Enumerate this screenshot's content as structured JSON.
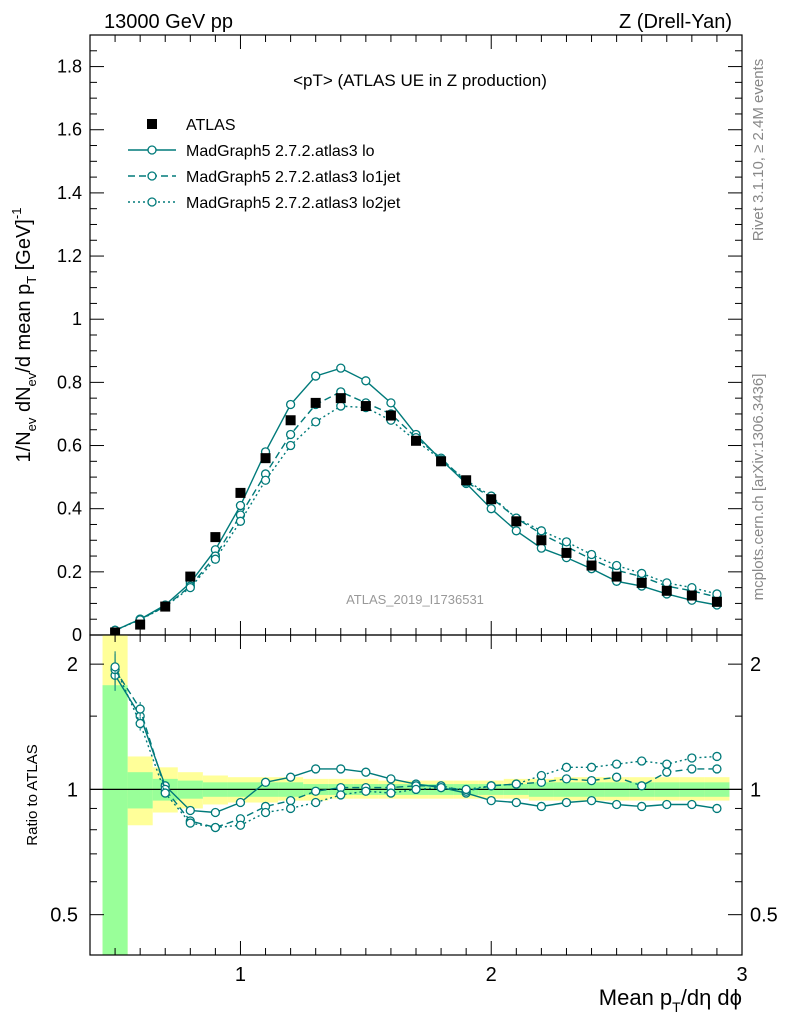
{
  "header": {
    "left": "13000 GeV pp",
    "right": "Z (Drell-Yan)"
  },
  "side_text": {
    "top": "Rivet 3.1.10, ≥ 2.4M events",
    "bottom": "mcplots.cern.ch [arXiv:1306.3436]"
  },
  "colors": {
    "mc": "#007a7a",
    "band_yellow": "#ffff99",
    "band_green": "#99ff99"
  },
  "chart_data": [
    {
      "type": "line",
      "title": "<pT> (ATLAS UE in Z production)",
      "watermark": "ATLAS_2019_I1736531",
      "ylabel": {
        "main": "1/N",
        "s1": "ev",
        "m2": " dN",
        "s2": "ev",
        "m3": "/d mean p",
        "s3": "T",
        "m4": " [GeV]",
        "sup": "-1"
      },
      "xlim": [
        0.4,
        3.0
      ],
      "ylim": [
        0,
        1.9
      ],
      "yticks": [
        0,
        0.2,
        0.4,
        0.6,
        0.8,
        1,
        1.2,
        1.4,
        1.6,
        1.8
      ],
      "ytick_labels": [
        "0",
        "0.2",
        "0.4",
        "0.6",
        "0.8",
        "1",
        "1.2",
        "1.4",
        "1.6",
        "1.8"
      ],
      "x": [
        0.5,
        0.6,
        0.7,
        0.8,
        0.9,
        1.0,
        1.1,
        1.2,
        1.3,
        1.4,
        1.5,
        1.6,
        1.7,
        1.8,
        1.9,
        2.0,
        2.1,
        2.2,
        2.3,
        2.4,
        2.5,
        2.6,
        2.7,
        2.8,
        2.9
      ],
      "series": [
        {
          "name": "ATLAS",
          "style": "marker",
          "values": [
            0.008,
            0.033,
            0.09,
            0.185,
            0.31,
            0.45,
            0.56,
            0.68,
            0.735,
            0.75,
            0.725,
            0.695,
            0.615,
            0.55,
            0.49,
            0.43,
            0.36,
            0.3,
            0.26,
            0.22,
            0.185,
            0.165,
            0.14,
            0.125,
            0.105
          ]
        },
        {
          "name": "MadGraph5 2.7.2.atlas3 lo",
          "style": "solid",
          "values": [
            0.015,
            0.05,
            0.095,
            0.165,
            0.27,
            0.41,
            0.58,
            0.73,
            0.82,
            0.845,
            0.805,
            0.735,
            0.635,
            0.555,
            0.48,
            0.4,
            0.33,
            0.275,
            0.245,
            0.21,
            0.17,
            0.155,
            0.13,
            0.11,
            0.095
          ]
        },
        {
          "name": "MadGraph5 2.7.2.atlas3 lo1jet",
          "style": "dashed",
          "values": [
            0.015,
            0.05,
            0.09,
            0.155,
            0.25,
            0.38,
            0.51,
            0.635,
            0.73,
            0.77,
            0.735,
            0.7,
            0.625,
            0.56,
            0.485,
            0.435,
            0.37,
            0.32,
            0.28,
            0.24,
            0.205,
            0.185,
            0.155,
            0.14,
            0.12
          ]
        },
        {
          "name": "MadGraph5 2.7.2.atlas3 lo2jet",
          "style": "dotted",
          "values": [
            0.015,
            0.048,
            0.09,
            0.15,
            0.24,
            0.36,
            0.49,
            0.6,
            0.675,
            0.725,
            0.72,
            0.68,
            0.615,
            0.555,
            0.49,
            0.44,
            0.37,
            0.33,
            0.295,
            0.255,
            0.22,
            0.195,
            0.165,
            0.15,
            0.13
          ]
        }
      ]
    },
    {
      "type": "line",
      "title": "",
      "ylabel": "Ratio to ATLAS",
      "xlabel": {
        "a": "Mean p",
        "sub": "T",
        "b": "/dη dϕ"
      },
      "ylim": [
        0.4,
        2.35
      ],
      "log_y": true,
      "yticks": [
        0.5,
        1,
        2
      ],
      "ytick_labels": [
        "0.5",
        "1",
        "2"
      ],
      "xticks": [
        1,
        2,
        3
      ],
      "xtick_labels": [
        "1",
        "2",
        "3"
      ],
      "x": [
        0.5,
        0.6,
        0.7,
        0.8,
        0.9,
        1.0,
        1.1,
        1.2,
        1.3,
        1.4,
        1.5,
        1.6,
        1.7,
        1.8,
        1.9,
        2.0,
        2.1,
        2.2,
        2.3,
        2.4,
        2.5,
        2.6,
        2.7,
        2.8,
        2.9
      ],
      "bands": {
        "edges": [
          0.45,
          0.55,
          0.65,
          0.75,
          0.85,
          0.95,
          1.05,
          1.15,
          1.25,
          1.35,
          1.45,
          1.55,
          1.65,
          1.75,
          1.85,
          1.95,
          2.05,
          2.15,
          2.25,
          2.35,
          2.45,
          2.55,
          2.65,
          2.75,
          2.85,
          2.95
        ],
        "yellow": [
          [
            0.4,
            2.35
          ],
          [
            0.82,
            1.2
          ],
          [
            0.88,
            1.13
          ],
          [
            0.9,
            1.1
          ],
          [
            0.92,
            1.08
          ],
          [
            0.93,
            1.07
          ],
          [
            0.93,
            1.07
          ],
          [
            0.94,
            1.07
          ],
          [
            0.94,
            1.06
          ],
          [
            0.95,
            1.06
          ],
          [
            0.95,
            1.06
          ],
          [
            0.95,
            1.05
          ],
          [
            0.95,
            1.05
          ],
          [
            0.95,
            1.05
          ],
          [
            0.95,
            1.05
          ],
          [
            0.95,
            1.05
          ],
          [
            0.95,
            1.06
          ],
          [
            0.94,
            1.06
          ],
          [
            0.94,
            1.07
          ],
          [
            0.94,
            1.07
          ],
          [
            0.94,
            1.07
          ],
          [
            0.94,
            1.07
          ],
          [
            0.94,
            1.07
          ],
          [
            0.94,
            1.07
          ],
          [
            0.94,
            1.07
          ]
        ],
        "green": [
          [
            0.4,
            1.78
          ],
          [
            0.9,
            1.1
          ],
          [
            0.94,
            1.06
          ],
          [
            0.95,
            1.05
          ],
          [
            0.96,
            1.04
          ],
          [
            0.96,
            1.04
          ],
          [
            0.96,
            1.04
          ],
          [
            0.96,
            1.04
          ],
          [
            0.97,
            1.03
          ],
          [
            0.97,
            1.03
          ],
          [
            0.97,
            1.03
          ],
          [
            0.97,
            1.03
          ],
          [
            0.97,
            1.03
          ],
          [
            0.97,
            1.03
          ],
          [
            0.97,
            1.03
          ],
          [
            0.97,
            1.03
          ],
          [
            0.97,
            1.03
          ],
          [
            0.96,
            1.04
          ],
          [
            0.96,
            1.04
          ],
          [
            0.96,
            1.04
          ],
          [
            0.96,
            1.04
          ],
          [
            0.96,
            1.04
          ],
          [
            0.96,
            1.04
          ],
          [
            0.96,
            1.04
          ],
          [
            0.96,
            1.04
          ]
        ]
      },
      "series": [
        {
          "name": "MadGraph5 2.7.2.atlas3 lo",
          "style": "solid",
          "values": [
            1.88,
            1.5,
            1.02,
            0.89,
            0.88,
            0.93,
            1.04,
            1.07,
            1.12,
            1.12,
            1.1,
            1.06,
            1.03,
            1.01,
            0.98,
            0.94,
            0.93,
            0.91,
            0.93,
            0.94,
            0.92,
            0.91,
            0.92,
            0.92,
            0.9
          ]
        },
        {
          "name": "MadGraph5 2.7.2.atlas3 lo1jet",
          "style": "dashed",
          "values": [
            1.94,
            1.56,
            1.0,
            0.84,
            0.81,
            0.85,
            0.91,
            0.94,
            0.99,
            1.01,
            1.01,
            1.01,
            1.02,
            1.02,
            0.99,
            1.02,
            1.03,
            1.04,
            1.06,
            1.05,
            1.07,
            1.02,
            1.1,
            1.12,
            1.12
          ]
        },
        {
          "name": "MadGraph5 2.7.2.atlas3 lo2jet",
          "style": "dotted",
          "values": [
            1.97,
            1.44,
            0.98,
            0.83,
            0.81,
            0.82,
            0.88,
            0.9,
            0.93,
            0.97,
            0.99,
            0.98,
            1.0,
            1.01,
            1.0,
            1.02,
            1.03,
            1.08,
            1.13,
            1.13,
            1.15,
            1.17,
            1.15,
            1.19,
            1.2
          ]
        }
      ]
    }
  ]
}
